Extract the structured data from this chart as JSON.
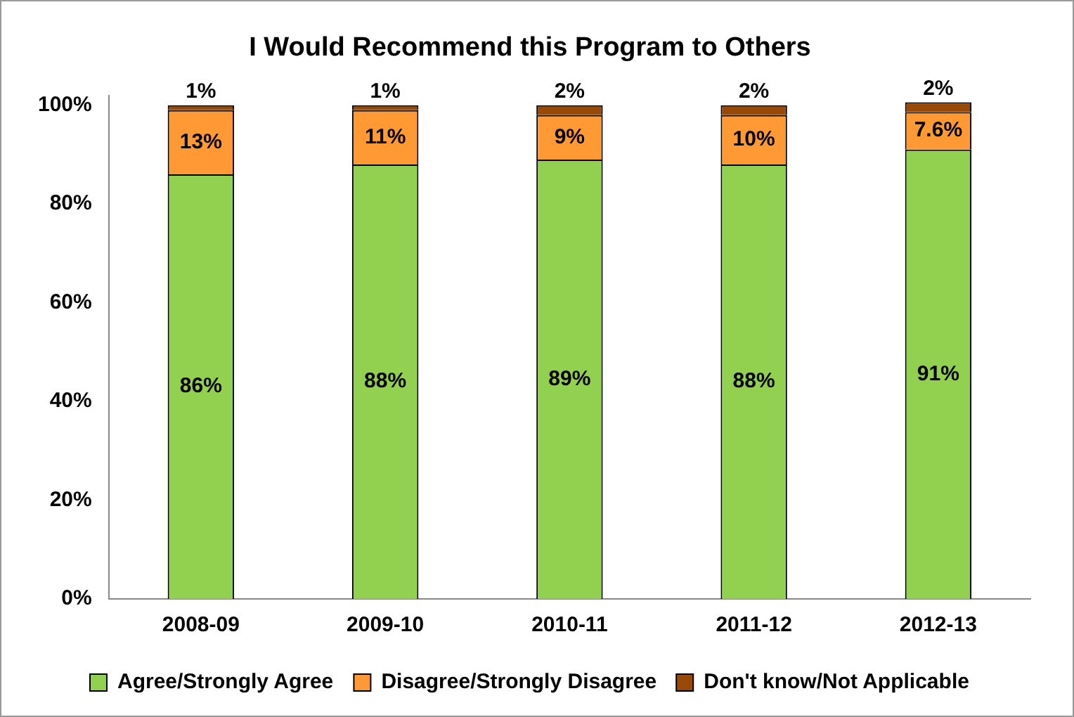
{
  "chart_data": {
    "type": "bar",
    "title": "I Would Recommend this Program to Others",
    "categories": [
      "2008-09",
      "2009-10",
      "2010-11",
      "2011-12",
      "2012-13"
    ],
    "stacked": true,
    "series": [
      {
        "name": "Agree/Strongly Agree",
        "color": "#92d050",
        "values": [
          86,
          88,
          89,
          88,
          91
        ],
        "value_labels": [
          "86%",
          "88%",
          "89%",
          "88%",
          "91%"
        ]
      },
      {
        "name": "Disagree/Strongly Disagree",
        "color": "#ff9933",
        "values": [
          13,
          11,
          9,
          10,
          7.6
        ],
        "value_labels": [
          "13%",
          "11%",
          "9%",
          "10%",
          "7.6%"
        ]
      },
      {
        "name": "Don't know/Not Applicable",
        "color": "#984807",
        "values": [
          1,
          1,
          2,
          2,
          2
        ],
        "value_labels": [
          "1%",
          "1%",
          "2%",
          "2%",
          "2%"
        ]
      }
    ],
    "ylim": [
      0,
      102
    ],
    "yticks": [
      {
        "value": 0,
        "label": "0%"
      },
      {
        "value": 20,
        "label": "20%"
      },
      {
        "value": 40,
        "label": "40%"
      },
      {
        "value": 60,
        "label": "60%"
      },
      {
        "value": 80,
        "label": "80%"
      },
      {
        "value": 100,
        "label": "100%"
      }
    ],
    "grid": false,
    "legend": "bottom"
  }
}
